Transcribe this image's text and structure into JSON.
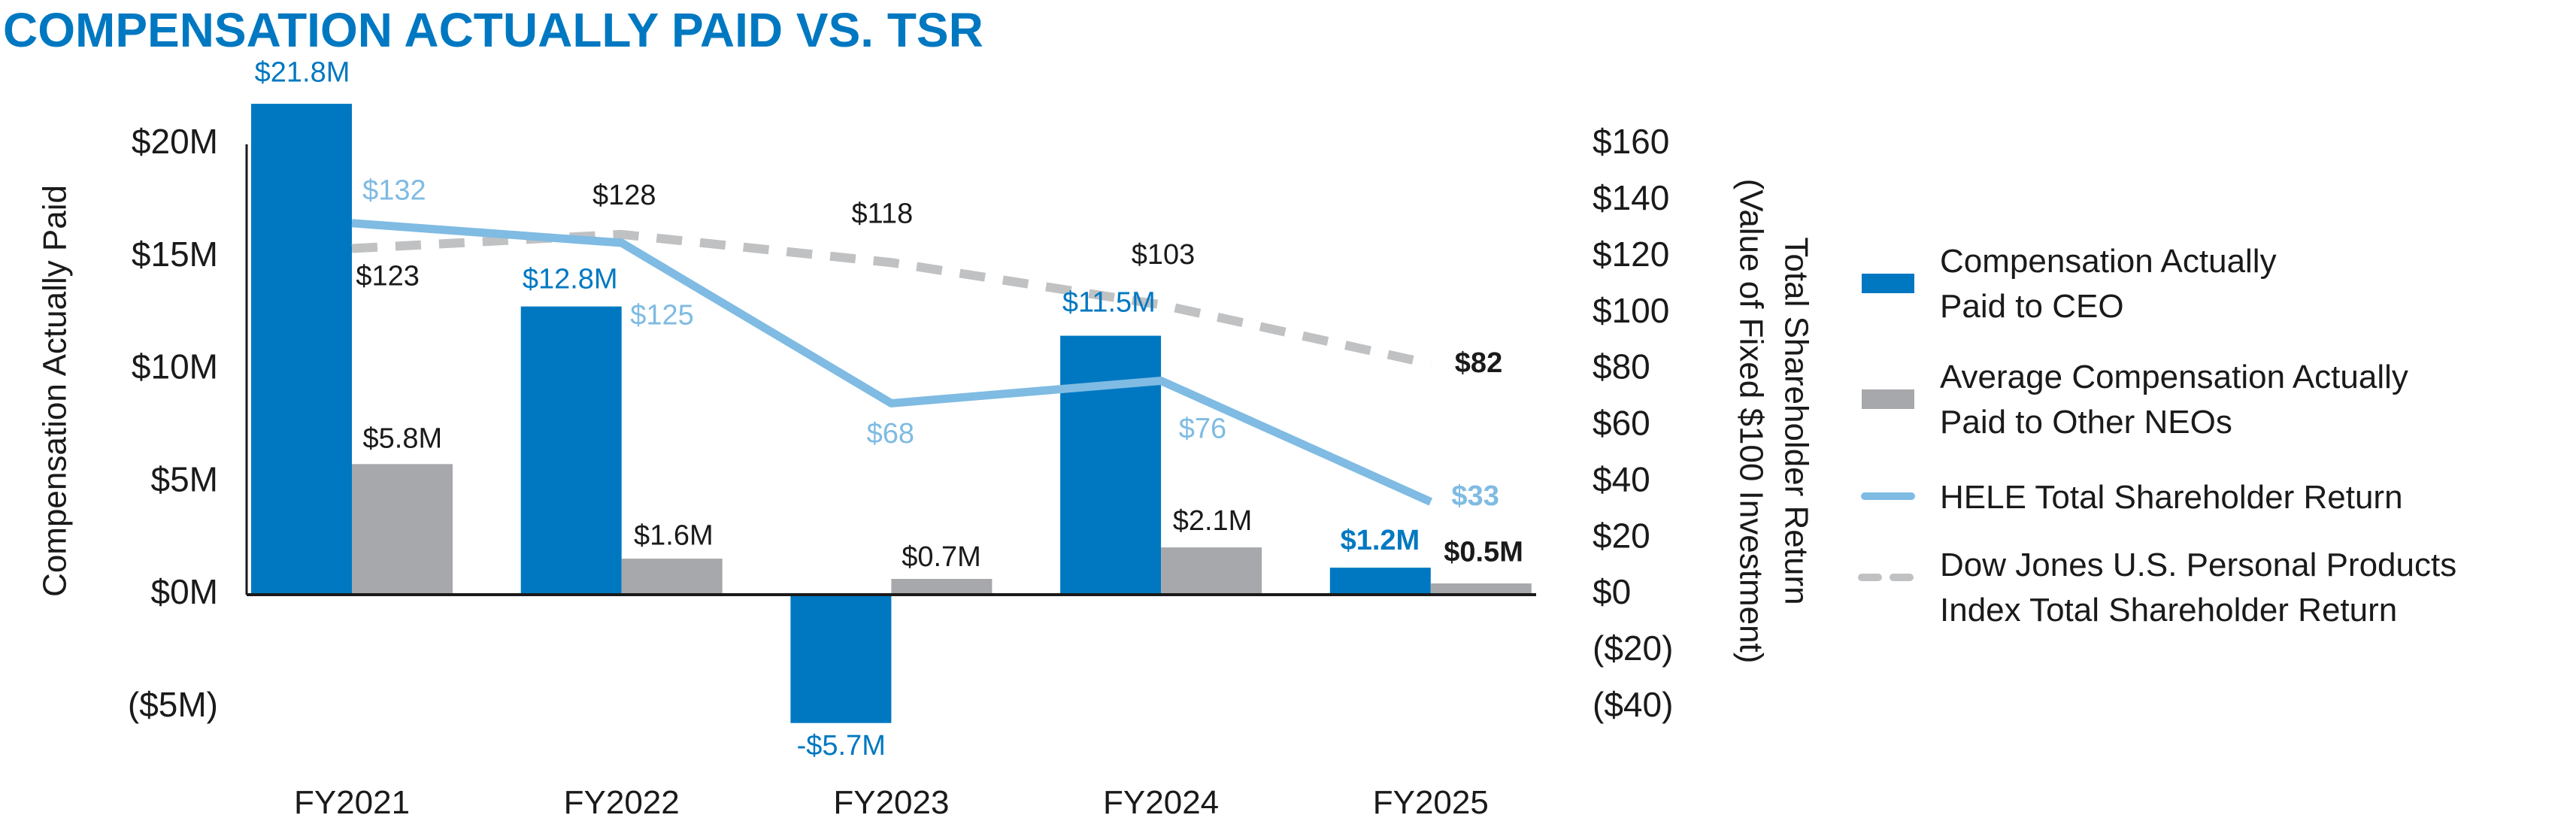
{
  "chart_data": {
    "type": "bar+line",
    "title": "COMPENSATION ACTUALLY PAID VS. TSR",
    "categories": [
      "FY2021",
      "FY2022",
      "FY2023",
      "FY2024",
      "FY2025"
    ],
    "y_left": {
      "label": "Compensation Actually Paid",
      "ylim": [
        -5,
        20
      ],
      "unit": "$M",
      "ticks": [
        20,
        15,
        10,
        5,
        0,
        -5
      ],
      "tick_labels": [
        "$20M",
        "$15M",
        "$10M",
        "$5M",
        "$0M",
        "($5M)"
      ]
    },
    "y_right": {
      "label_line1": "Total Shareholder Return",
      "label_line2": "(Value of Fixed $100 Investment)",
      "ylim": [
        -40,
        160
      ],
      "ticks": [
        160,
        140,
        120,
        100,
        80,
        60,
        40,
        20,
        0,
        -20,
        -40
      ],
      "tick_labels": [
        "$160",
        "$140",
        "$120",
        "$100",
        "$80",
        "$60",
        "$40",
        "$20",
        "$0",
        "($20)",
        "($40)"
      ]
    },
    "grid": false,
    "legend_position": "right",
    "series": [
      {
        "name": "Compensation Actually Paid to CEO",
        "name_line1": "Compensation Actually",
        "name_line2": "Paid to CEO",
        "kind": "bar",
        "axis": "left",
        "color": "#0078c1",
        "values": [
          21.8,
          12.8,
          -5.7,
          11.5,
          1.2
        ],
        "labels": [
          "$21.8M",
          "$12.8M",
          "-$5.7M",
          "$11.5M",
          "$1.2M"
        ]
      },
      {
        "name": "Average Compensation Actually Paid to Other NEOs",
        "name_line1": "Average Compensation Actually",
        "name_line2": "Paid to Other NEOs",
        "kind": "bar",
        "axis": "left",
        "color": "#a7a8ab",
        "values": [
          5.8,
          1.6,
          0.7,
          2.1,
          0.5
        ],
        "labels": [
          "$5.8M",
          "$1.6M",
          "$0.7M",
          "$2.1M",
          "$0.5M"
        ]
      },
      {
        "name": "HELE Total Shareholder Return",
        "name_line1": "HELE Total Shareholder Return",
        "name_line2": "",
        "kind": "line",
        "axis": "right",
        "color": "#7fbbe3",
        "values": [
          132,
          125,
          68,
          76,
          33
        ],
        "labels": [
          "$132",
          "$125",
          "$68",
          "$76",
          "$33"
        ]
      },
      {
        "name": "Dow Jones U.S. Personal Products Index Total Shareholder Return",
        "name_line1": "Dow Jones U.S. Personal Products",
        "name_line2": "Index Total Shareholder Return",
        "kind": "dashed-line",
        "axis": "right",
        "color": "#c0c1c3",
        "values": [
          123,
          128,
          118,
          103,
          82
        ],
        "labels": [
          "$123",
          "$128",
          "$118",
          "$103",
          "$82"
        ]
      }
    ],
    "label_colors": {
      "ceo": "#0078c1",
      "neo": "#1a1a1a",
      "hele": "#7fbbe3",
      "dj": "#1a1a1a"
    }
  }
}
